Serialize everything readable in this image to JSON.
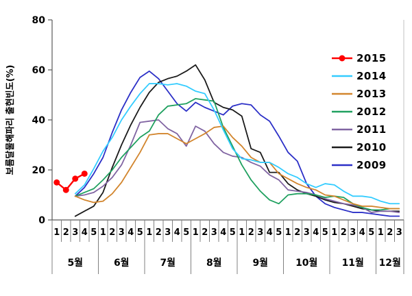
{
  "chart_data": {
    "type": "line",
    "title": "",
    "y_axis": {
      "title": "보름달물해파리 출현빈도(%)",
      "min": 0,
      "max": 80,
      "ticks": [
        0,
        20,
        40,
        60,
        80
      ]
    },
    "x_axis": {
      "unit": "week-of-month",
      "months": [
        {
          "label": "5월",
          "weeks": [
            1,
            2,
            3,
            4,
            5
          ]
        },
        {
          "label": "6월",
          "weeks": [
            1,
            2,
            3,
            4,
            5
          ]
        },
        {
          "label": "7월",
          "weeks": [
            1,
            2,
            3,
            4,
            5
          ]
        },
        {
          "label": "8월",
          "weeks": [
            1,
            2,
            3,
            4,
            5
          ]
        },
        {
          "label": "9월",
          "weeks": [
            1,
            2,
            3,
            4,
            5
          ]
        },
        {
          "label": "10월",
          "weeks": [
            1,
            2,
            3,
            4,
            5
          ]
        },
        {
          "label": "11월",
          "weeks": [
            1,
            2,
            3,
            4,
            5
          ]
        },
        {
          "label": "12월",
          "weeks": [
            1,
            2,
            3
          ]
        }
      ]
    },
    "legend": {
      "position": "right-inside"
    },
    "series": [
      {
        "name": "2015",
        "color": "#FF0000",
        "marker": true,
        "values": [
          15,
          12,
          16.5,
          18.5,
          null,
          null,
          null,
          null,
          null,
          null,
          null,
          null,
          null,
          null,
          null,
          null,
          null,
          null,
          null,
          null,
          null,
          null,
          null,
          null,
          null,
          null,
          null,
          null,
          null,
          null,
          null,
          null,
          null,
          null,
          null,
          null,
          null,
          null
        ]
      },
      {
        "name": "2014",
        "color": "#33CCFF",
        "marker": false,
        "values": [
          null,
          null,
          10.5,
          14,
          20.5,
          27.5,
          33,
          40,
          45.5,
          50.5,
          54.5,
          54.5,
          54,
          54.5,
          53.5,
          51.5,
          50.5,
          44,
          36,
          28.5,
          24.5,
          24,
          23,
          23,
          21,
          18.5,
          17,
          14.5,
          13,
          14.5,
          14,
          11.5,
          9.5,
          9.5,
          9,
          7.5,
          6.5,
          6.5
        ]
      },
      {
        "name": "2013",
        "color": "#D2852D",
        "marker": false,
        "values": [
          null,
          null,
          9.5,
          8,
          7,
          7.5,
          10.5,
          15,
          21,
          27,
          34,
          34.5,
          34.5,
          32.5,
          30.5,
          32.5,
          34.5,
          37,
          37.5,
          33,
          29.5,
          25,
          23,
          23,
          18.5,
          16.5,
          14.5,
          13,
          12,
          10,
          9.5,
          8,
          6.5,
          5.5,
          5.5,
          5,
          4.5,
          4.5
        ]
      },
      {
        "name": "2012",
        "color": "#1FA05F",
        "marker": false,
        "values": [
          null,
          null,
          9.5,
          11,
          12.5,
          16,
          20,
          25,
          29,
          33,
          35.5,
          42,
          45.5,
          46,
          46.5,
          48.5,
          48,
          47.5,
          37,
          29.5,
          22,
          16,
          11.5,
          8,
          6.5,
          10,
          10.5,
          10.5,
          10,
          9,
          9.5,
          9,
          6.5,
          5,
          4,
          4,
          4.5,
          4.5
        ]
      },
      {
        "name": "2011",
        "color": "#8064A2",
        "marker": false,
        "values": [
          null,
          null,
          9.5,
          10,
          11,
          13.5,
          17,
          22,
          30,
          39,
          39.5,
          40,
          36.5,
          34.5,
          29.5,
          37.5,
          35.5,
          30.5,
          27,
          25.5,
          25,
          23,
          21.5,
          18,
          16,
          12,
          11.5,
          11,
          10,
          8.5,
          7.5,
          6.5,
          6,
          5,
          3,
          3.5,
          3.5,
          3
        ]
      },
      {
        "name": "2010",
        "color": "#1A1A1A",
        "marker": false,
        "values": [
          null,
          null,
          1.5,
          3.5,
          5.5,
          11,
          21,
          30,
          38,
          45,
          51,
          55,
          56.5,
          57.5,
          59.5,
          62,
          56,
          47,
          45,
          44,
          41.5,
          28.5,
          27,
          19,
          19,
          14.5,
          12,
          10.5,
          9.5,
          8,
          7,
          6.5,
          5.5,
          4.5,
          4,
          3.5,
          3.5,
          3.5
        ]
      },
      {
        "name": "2009",
        "color": "#2B2FC7",
        "marker": false,
        "values": [
          null,
          null,
          9.5,
          13,
          18.5,
          25,
          35,
          44,
          51,
          57,
          59.5,
          56.5,
          51.5,
          46.5,
          43.5,
          47,
          45,
          43.5,
          42,
          45.5,
          46.5,
          46,
          42,
          39.5,
          33.5,
          27,
          23.5,
          14.5,
          9.5,
          6.5,
          5,
          4,
          3,
          3,
          2.5,
          2,
          1.5,
          1.5
        ]
      }
    ]
  }
}
